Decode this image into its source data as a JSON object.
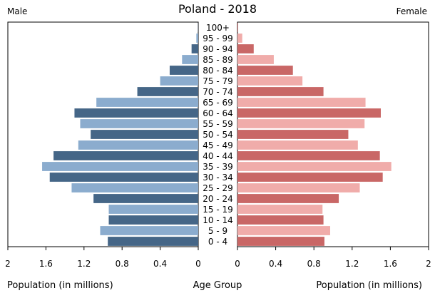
{
  "header": {
    "title": "Poland - 2018",
    "male_label": "Male",
    "female_label": "Female"
  },
  "footer": {
    "left_axis_label": "Population (in millions)",
    "center_label": "Age Group",
    "right_axis_label": "Population (in millions)"
  },
  "colors": {
    "male_dark": "#456687",
    "male_light": "#8bacce",
    "female_dark": "#c96766",
    "female_light": "#f0acaa"
  },
  "chart_data": {
    "type": "bar",
    "title": "Poland - 2018",
    "xlabel": "Population (in millions)",
    "ylabel": "Age Group",
    "xlim": [
      0,
      2
    ],
    "x_ticks": [
      "2",
      "1.6",
      "1.2",
      "0.8",
      "0.4",
      "0"
    ],
    "x_ticks_right": [
      "0",
      "0.4",
      "0.8",
      "1.2",
      "1.6",
      "2"
    ],
    "categories": [
      "100+",
      "95 - 99",
      "90 - 94",
      "85 - 89",
      "80 - 84",
      "75 - 79",
      "70 - 74",
      "65 - 69",
      "60 - 64",
      "55 - 59",
      "50 - 54",
      "45 - 49",
      "40 - 44",
      "35 - 39",
      "30 - 34",
      "25 - 29",
      "20 - 24",
      "15 - 19",
      "10 - 14",
      "5 - 9",
      "0 - 4"
    ],
    "series": [
      {
        "name": "Male",
        "values": [
          0.002,
          0.02,
          0.07,
          0.17,
          0.3,
          0.4,
          0.64,
          1.07,
          1.3,
          1.24,
          1.13,
          1.26,
          1.52,
          1.64,
          1.56,
          1.33,
          1.1,
          0.94,
          0.94,
          1.03,
          0.95
        ]
      },
      {
        "name": "Female",
        "values": [
          0.006,
          0.05,
          0.17,
          0.38,
          0.58,
          0.68,
          0.9,
          1.34,
          1.5,
          1.33,
          1.16,
          1.26,
          1.49,
          1.61,
          1.52,
          1.28,
          1.06,
          0.89,
          0.9,
          0.97,
          0.91
        ]
      }
    ],
    "grid": false,
    "legend": "none"
  }
}
